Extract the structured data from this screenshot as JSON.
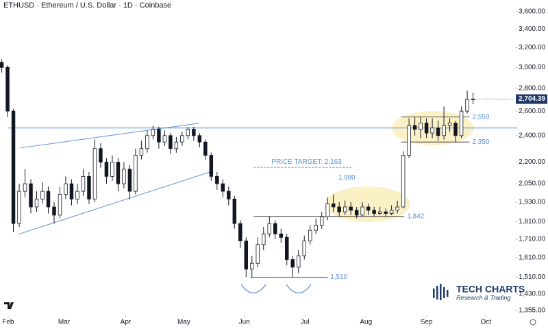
{
  "chart_data": {
    "type": "candlestick",
    "title": "ETHUSD · Ethereum / U.S. Dollar · 1D · Coinbase",
    "log_scale": true,
    "up_color": "#ffffff",
    "down_color": "#131722",
    "line_color": "#5b8fd6",
    "xlim": [
      -0.3,
      88
    ],
    "xticks": [
      {
        "value": 1.1,
        "label": "Feb"
      },
      {
        "value": 10.7,
        "label": "Mar"
      },
      {
        "value": 21.3,
        "label": "Apr"
      },
      {
        "value": 31.3,
        "label": "May"
      },
      {
        "value": 41.7,
        "label": "Jun"
      },
      {
        "value": 52.1,
        "label": "Jul"
      },
      {
        "value": 62.6,
        "label": "Aug"
      },
      {
        "value": 73.0,
        "label": "Sep"
      },
      {
        "value": 83.2,
        "label": "Oct"
      }
    ],
    "ylim": [
      1333,
      3740
    ],
    "yticks": [
      {
        "value": 3600,
        "label": "3,600.00"
      },
      {
        "value": 3400,
        "label": "3,400.00"
      },
      {
        "value": 3200,
        "label": "3,200.00"
      },
      {
        "value": 3000,
        "label": "3,000.00"
      },
      {
        "value": 2800,
        "label": "2,800.00"
      },
      {
        "value": 2600,
        "label": "2,600.00"
      },
      {
        "value": 2400,
        "label": "2,400.00"
      },
      {
        "value": 2200,
        "label": "2,200.00"
      },
      {
        "value": 2050,
        "label": "2,050.00"
      },
      {
        "value": 1930,
        "label": "1,930.00"
      },
      {
        "value": 1810,
        "label": "1,810.00"
      },
      {
        "value": 1710,
        "label": "1,710.00"
      },
      {
        "value": 1610,
        "label": "1,610.00"
      },
      {
        "value": 1510,
        "label": "1,510.00"
      },
      {
        "value": 1430,
        "label": "1,430.00"
      },
      {
        "value": 1355,
        "label": "1,355.00"
      }
    ],
    "last_price": {
      "value": 2704.39,
      "label": "2,704.39"
    },
    "open": [
      3050,
      3000,
      2600,
      1800,
      2000,
      2050,
      1900,
      1950,
      2000,
      1900,
      1850,
      1980,
      2050,
      1950,
      2000,
      2100,
      1950,
      2300,
      2200,
      2100,
      2200,
      2050,
      2150,
      2000,
      2250,
      2300,
      2400,
      2450,
      2350,
      2400,
      2300,
      2350,
      2400,
      2450,
      2400,
      2350,
      2250,
      2100,
      2050,
      2000,
      1950,
      1800,
      1700,
      1550,
      1580,
      1680,
      1740,
      1800,
      1740,
      1720,
      1600,
      1560,
      1620,
      1700,
      1760,
      1790,
      1840,
      1920,
      1900,
      1870,
      1900,
      1880,
      1850,
      1900,
      1880,
      1860,
      1870,
      1860,
      1880,
      1900,
      2250,
      2480,
      2450,
      2500,
      2420,
      2460,
      2400,
      2480,
      2500,
      2400,
      2600,
      2700
    ],
    "high": [
      3080,
      3020,
      2620,
      2050,
      2150,
      2080,
      2000,
      2060,
      2030,
      1930,
      2030,
      2100,
      2080,
      2050,
      2150,
      2130,
      2370,
      2340,
      2230,
      2250,
      2230,
      2200,
      2180,
      2300,
      2360,
      2440,
      2480,
      2470,
      2440,
      2420,
      2390,
      2430,
      2470,
      2470,
      2420,
      2370,
      2270,
      2130,
      2080,
      2030,
      1970,
      1820,
      1720,
      1620,
      1720,
      1780,
      1840,
      1820,
      1770,
      1740,
      1620,
      1650,
      1730,
      1790,
      1830,
      1870,
      1960,
      1980,
      1930,
      1940,
      1930,
      1900,
      1930,
      1920,
      1900,
      1900,
      1890,
      1910,
      1940,
      2280,
      2540,
      2550,
      2550,
      2540,
      2540,
      2520,
      2640,
      2540,
      2520,
      2640,
      2780,
      2760
    ],
    "low": [
      2950,
      2550,
      1750,
      1780,
      1960,
      1860,
      1870,
      1920,
      1860,
      1800,
      1830,
      1950,
      1910,
      1920,
      1970,
      1920,
      1930,
      2160,
      2050,
      2070,
      2000,
      2020,
      1950,
      1980,
      2220,
      2270,
      2370,
      2300,
      2320,
      2260,
      2270,
      2320,
      2370,
      2360,
      2310,
      2220,
      2070,
      2010,
      1960,
      1910,
      1770,
      1660,
      1510,
      1510,
      1560,
      1650,
      1720,
      1710,
      1690,
      1570,
      1510,
      1530,
      1600,
      1680,
      1740,
      1770,
      1820,
      1870,
      1840,
      1850,
      1850,
      1830,
      1840,
      1850,
      1840,
      1850,
      1840,
      1850,
      1860,
      1890,
      2230,
      2400,
      2380,
      2380,
      2380,
      2360,
      2370,
      2430,
      2350,
      2380,
      2580,
      2660
    ],
    "close": [
      3000,
      2600,
      1800,
      2000,
      2050,
      1900,
      1950,
      2000,
      1900,
      1850,
      1980,
      2050,
      1950,
      2000,
      2100,
      1950,
      2300,
      2200,
      2100,
      2200,
      2050,
      2150,
      2000,
      2250,
      2300,
      2400,
      2450,
      2350,
      2400,
      2300,
      2350,
      2400,
      2450,
      2400,
      2350,
      2250,
      2100,
      2050,
      2000,
      1950,
      1800,
      1700,
      1550,
      1580,
      1680,
      1740,
      1800,
      1740,
      1720,
      1600,
      1560,
      1620,
      1700,
      1760,
      1790,
      1840,
      1920,
      1900,
      1870,
      1900,
      1880,
      1850,
      1900,
      1880,
      1860,
      1870,
      1860,
      1880,
      1900,
      2250,
      2480,
      2450,
      2500,
      2420,
      2460,
      2400,
      2480,
      2500,
      2400,
      2600,
      2700,
      2704.39
    ],
    "resistance": 2460,
    "trendlines": [
      {
        "x": [
          3.2,
          33.9
        ],
        "y": [
          2305,
          2499
        ]
      },
      {
        "x": [
          2.9,
          36.2
        ],
        "y": [
          1738,
          2136
        ]
      }
    ],
    "levels": [
      {
        "label": "2,550",
        "value": 2550,
        "x": [
          68.6,
          80.4
        ]
      },
      {
        "label": "2,350",
        "value": 2350,
        "x": [
          68.6,
          80.4
        ]
      },
      {
        "label": "1,842",
        "value": 1842,
        "x": [
          43.3,
          69.2
        ]
      },
      {
        "label": "1,510",
        "value": 1510,
        "x": [
          42.7,
          56.0
        ]
      }
    ],
    "target": {
      "label": "PRICE TARGET: 2,163",
      "value": 2163,
      "x": [
        43.3,
        60.4
      ]
    },
    "peak": {
      "label": "1,980",
      "value": 1980,
      "x": 59.3
    }
  },
  "logo": {
    "name": "TECH CHARTS",
    "tagline": "Research & Trading"
  }
}
